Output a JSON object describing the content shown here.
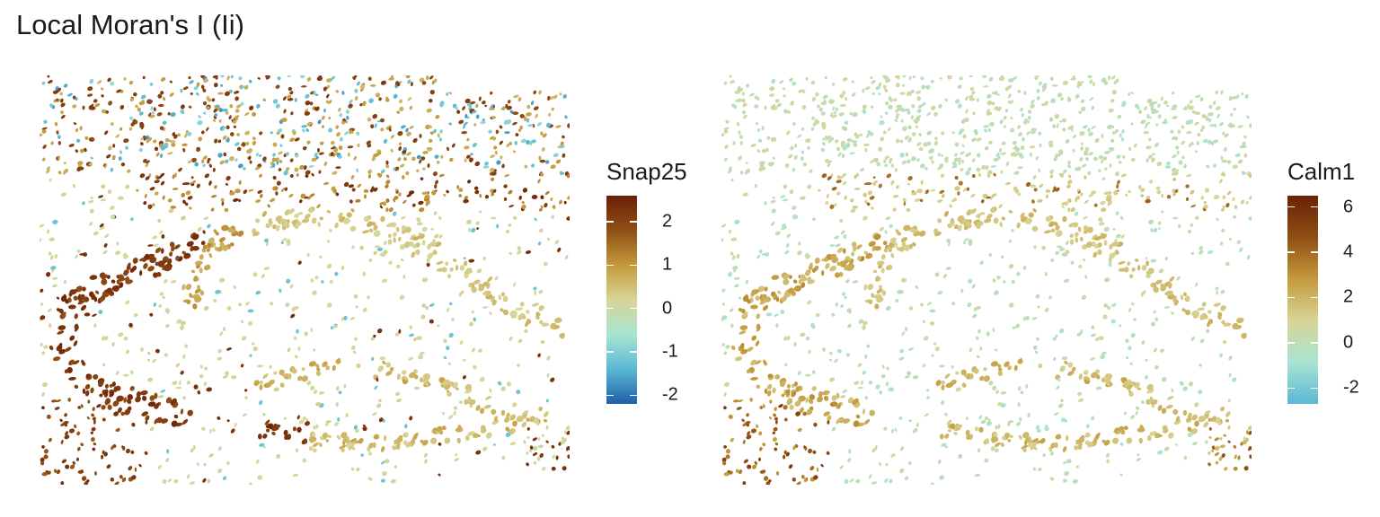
{
  "title": "Local Moran's I (Ii)",
  "chart_data": [
    {
      "type": "spatial-scatter",
      "feature": "Snap25",
      "legend": {
        "title": "Snap25",
        "range": [
          -2.2,
          2.6
        ],
        "ticks": [
          2,
          1,
          0,
          -1,
          -2
        ],
        "tick_labels": [
          "2",
          "1",
          "0",
          "-1",
          "-2"
        ],
        "colors": [
          "#1f5fa8",
          "#5ab8d4",
          "#a8e4d2",
          "#d8d596",
          "#c49a3c",
          "#8f4f14",
          "#6b2006"
        ]
      }
    },
    {
      "type": "spatial-scatter",
      "feature": "Calm1",
      "legend": {
        "title": "Calm1",
        "range": [
          -2.7,
          6.5
        ],
        "ticks": [
          6,
          4,
          2,
          0,
          -2
        ],
        "tick_labels": [
          "6",
          "4",
          "2",
          "0",
          "-2"
        ],
        "colors": [
          "#5ab8d4",
          "#a8e4d2",
          "#d8d596",
          "#c49a3c",
          "#8f4f14",
          "#6b2006"
        ]
      }
    }
  ]
}
